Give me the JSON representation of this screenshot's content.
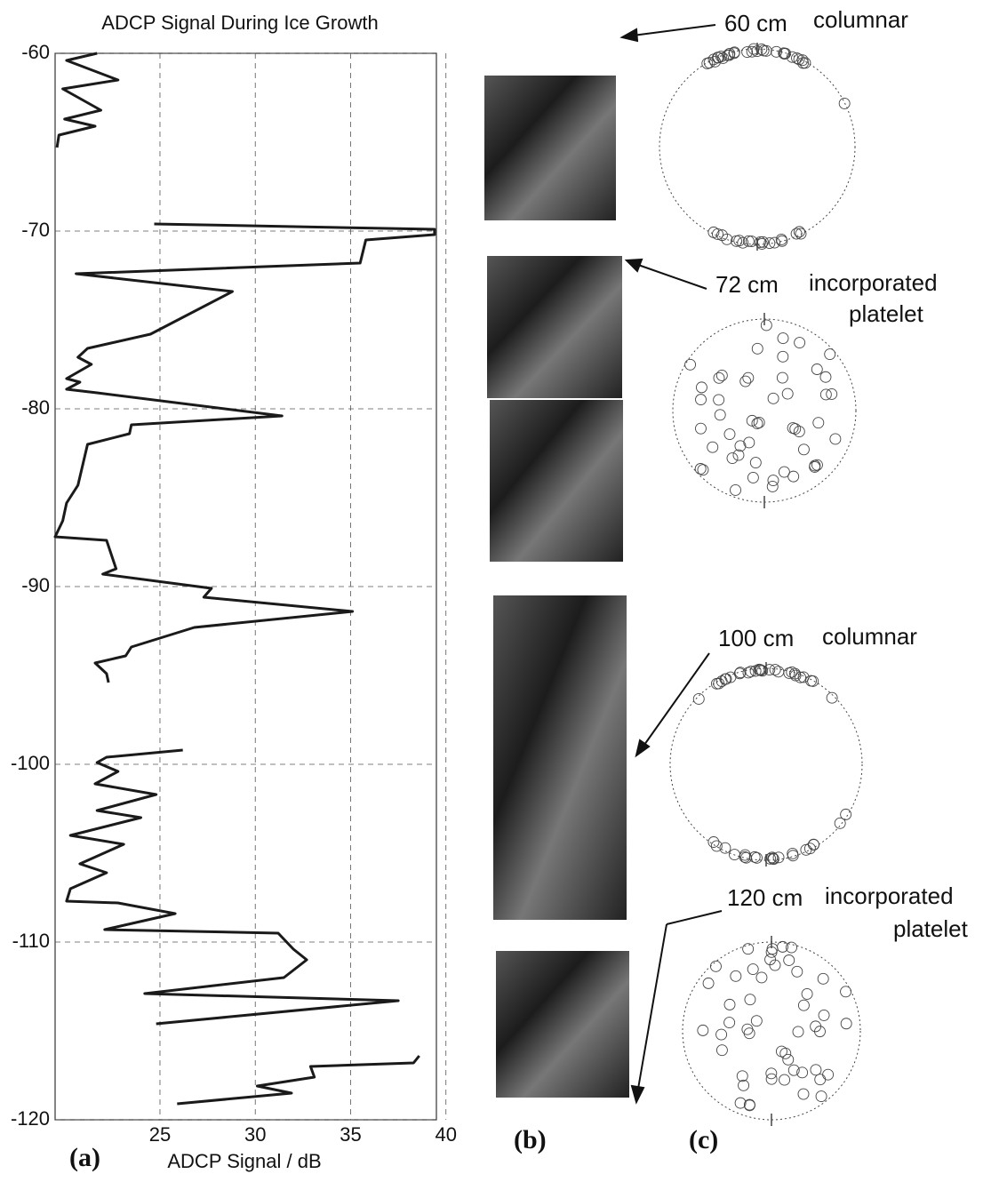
{
  "chart_data": {
    "type": "line",
    "title": "ADCP Signal During Ice Growth",
    "xlabel": "ADCP Signal / dB",
    "xlim": [
      19.5,
      39.5
    ],
    "xticks": [
      25,
      30,
      35,
      40
    ],
    "ylim": [
      -120,
      -60
    ],
    "yticks": [
      -120,
      -110,
      -100,
      -90,
      -80,
      -70,
      -60
    ],
    "grid": true,
    "color": "#1a1a1a",
    "x": [
      21.7,
      20.1,
      22.8,
      19.9,
      21.9,
      20.0,
      21.6,
      19.7,
      19.6,
      null,
      24.7,
      39.4,
      39.4,
      35.8,
      35.5,
      20.6,
      28.8,
      24.5,
      21.2,
      20.7,
      21.4,
      20.1,
      20.8,
      20.1,
      21.7,
      31.4,
      23.5,
      23.4,
      21.2,
      20.7,
      20.1,
      19.9,
      19.5,
      22.2,
      22.7,
      22.0,
      27.7,
      27.3,
      35.1,
      26.8,
      23.5,
      23.2,
      21.6,
      22.2,
      22.3,
      null,
      26.2,
      22.2,
      21.7,
      22.8,
      21.6,
      24.8,
      21.7,
      24.0,
      20.3,
      23.1,
      20.8,
      22.2,
      20.3,
      20.1,
      22.8,
      25.8,
      22.1,
      31.2,
      32.0,
      32.7,
      31.5,
      24.2,
      37.5,
      24.8,
      null,
      38.6,
      38.3,
      32.9,
      33.1,
      30.1,
      31.9,
      25.9
    ],
    "values": [
      -60,
      -60.4,
      -61.5,
      -62,
      -63.2,
      -63.7,
      -64.1,
      -64.6,
      -65.3,
      null,
      -69.6,
      -69.9,
      -70.2,
      -70.5,
      -71.8,
      -72.4,
      -73.4,
      -75.8,
      -76.6,
      -77.1,
      -77.5,
      -78.3,
      -78.5,
      -78.9,
      -79.1,
      -80.4,
      -80.9,
      -81.4,
      -82,
      -84.3,
      -85.3,
      -86.3,
      -87.2,
      -87.4,
      -89,
      -89.3,
      -90.1,
      -90.6,
      -91.4,
      -92.3,
      -93.4,
      -93.9,
      -94.3,
      -94.9,
      -95.4,
      null,
      -99.2,
      -99.6,
      -99.9,
      -100.4,
      -101.1,
      -101.7,
      -102.6,
      -103,
      -104,
      -104.5,
      -105.6,
      -106.1,
      -107,
      -107.7,
      -107.8,
      -108.4,
      -109.3,
      -109.5,
      -110.4,
      -111,
      -112,
      -112.9,
      -113.3,
      -114.6,
      null,
      -116.4,
      -116.8,
      -117,
      -117.6,
      -118.1,
      -118.5,
      -119.1
    ],
    "panel_labels": [
      "(a)",
      "(b)",
      "(c)"
    ],
    "annotations": [
      "60 cm",
      "columnar",
      "72 cm",
      "incorporated",
      "platelet",
      "100 cm",
      "columnar",
      "120 cm",
      "incorporated",
      "platelet"
    ]
  }
}
